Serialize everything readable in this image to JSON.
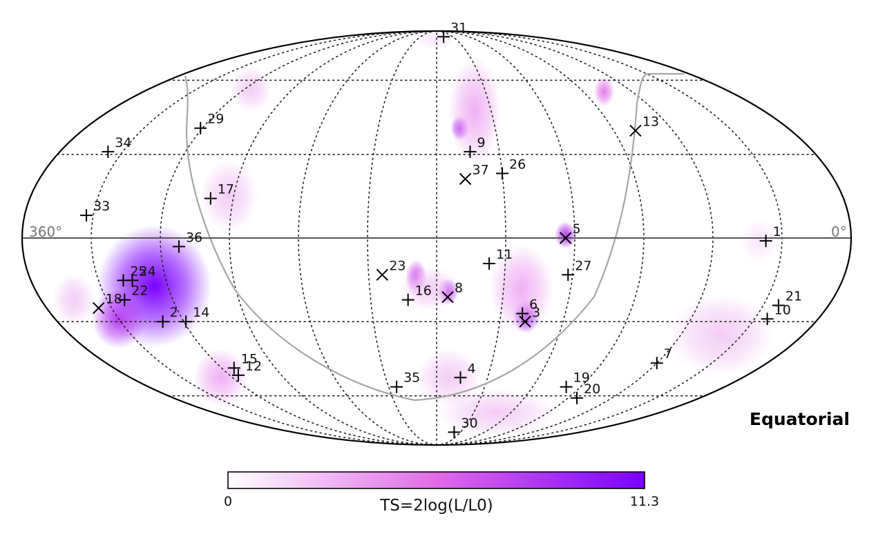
{
  "chart_data": {
    "type": "scatter",
    "projection": "mollweide",
    "frame_label": "Equatorial",
    "x_tick_left": "360°",
    "x_tick_right": "0°",
    "ra_range": [
      0,
      360
    ],
    "dec_range": [
      -90,
      90
    ],
    "grid_ra_step": 30,
    "grid_dec": [
      -60,
      -30,
      0,
      30,
      60
    ],
    "colorbar": {
      "min": 0,
      "max": 11.3,
      "min_label": "0",
      "max_label": "11.3",
      "label": "TS=2log(L/L0)",
      "color_low": "#ffffff",
      "color_high": "#7b00ff"
    },
    "hotspot_colormap_note": "color",
    "ts_map": [
      {
        "ra": 306,
        "dec": -17,
        "ts": 11.3,
        "ra_spread": 16,
        "dec_spread": 14
      },
      {
        "ra": 330,
        "dec": -29,
        "ts": 8.0,
        "ra_spread": 8,
        "dec_spread": 7
      },
      {
        "ra": 307,
        "dec": -52,
        "ts": 3.0,
        "ra_spread": 10,
        "dec_spread": 8
      },
      {
        "ra": 296,
        "dec": 56,
        "ts": 2.0,
        "ra_spread": 8,
        "dec_spread": 6
      },
      {
        "ra": 272,
        "dec": 15,
        "ts": 2.0,
        "ra_spread": 8,
        "dec_spread": 8
      },
      {
        "ra": 77,
        "dec": 55,
        "ts": 5.0,
        "ra_spread": 4,
        "dec_spread": 4
      },
      {
        "ra": 168,
        "dec": 40,
        "ts": 8.0,
        "ra_spread": 3,
        "dec_spread": 3
      },
      {
        "ra": 159,
        "dec": 47,
        "ts": 3.0,
        "ra_spread": 9,
        "dec_spread": 13
      },
      {
        "ra": 124,
        "dec": 1,
        "ts": 8.0,
        "ra_spread": 3,
        "dec_spread": 3
      },
      {
        "ra": 138,
        "dec": -28,
        "ts": 8.5,
        "ra_spread": 4,
        "dec_spread": 4
      },
      {
        "ra": 142,
        "dec": -18,
        "ts": 3.0,
        "ra_spread": 9,
        "dec_spread": 10
      },
      {
        "ra": 175,
        "dec": -19,
        "ts": 8.0,
        "ra_spread": 3,
        "dec_spread": 3
      },
      {
        "ra": 189,
        "dec": -14,
        "ts": 6.5,
        "ra_spread": 3,
        "dec_spread": 4
      },
      {
        "ra": 183,
        "dec": -18,
        "ts": 2.0,
        "ra_spread": 8,
        "dec_spread": 5
      },
      {
        "ra": 173,
        "dec": -52,
        "ts": 2.0,
        "ra_spread": 12,
        "dec_spread": 8
      },
      {
        "ra": 132,
        "dec": -68,
        "ts": 2.0,
        "ra_spread": 30,
        "dec_spread": 8
      },
      {
        "ra": 40,
        "dec": -35,
        "ts": 2.0,
        "ra_spread": 16,
        "dec_spread": 10
      },
      {
        "ra": 345,
        "dec": -22,
        "ts": 2.0,
        "ra_spread": 6,
        "dec_spread": 6
      },
      {
        "ra": 183,
        "dec": 82,
        "ts": 1.0,
        "ra_spread": 20,
        "dec_spread": 4
      },
      {
        "ra": 40,
        "dec": -1,
        "ts": 1.0,
        "ra_spread": 5,
        "dec_spread": 5
      }
    ],
    "markers": [
      {
        "id": "1",
        "ra": 37,
        "dec": -1,
        "symbol": "+"
      },
      {
        "id": "2",
        "ra": 310,
        "dec": -30,
        "symbol": "+"
      },
      {
        "id": "3",
        "ra": 138,
        "dec": -30,
        "symbol": "x"
      },
      {
        "id": "4",
        "ra": 166,
        "dec": -52,
        "symbol": "+"
      },
      {
        "id": "5",
        "ra": 124,
        "dec": 0,
        "symbol": "x"
      },
      {
        "id": "6",
        "ra": 140,
        "dec": -27,
        "symbol": "+"
      },
      {
        "id": "7",
        "ra": 60,
        "dec": -46,
        "symbol": "+"
      },
      {
        "id": "8",
        "ra": 175,
        "dec": -21,
        "symbol": "x"
      },
      {
        "id": "9",
        "ra": 164,
        "dec": 31,
        "symbol": "+"
      },
      {
        "id": "10",
        "ra": 24,
        "dec": -29,
        "symbol": "+"
      },
      {
        "id": "11",
        "ra": 157,
        "dec": -9,
        "symbol": "+"
      },
      {
        "id": "12",
        "ra": 295,
        "dec": -51,
        "symbol": "+"
      },
      {
        "id": "13",
        "ra": 79,
        "dec": 39,
        "symbol": "x"
      },
      {
        "id": "14",
        "ra": 299,
        "dec": -30,
        "symbol": "+"
      },
      {
        "id": "15",
        "ra": 293,
        "dec": -48,
        "symbol": "+"
      },
      {
        "id": "16",
        "ra": 193,
        "dec": -22,
        "symbol": "+"
      },
      {
        "id": "17",
        "ra": 280,
        "dec": 14,
        "symbol": "+"
      },
      {
        "id": "18",
        "ra": 336,
        "dec": -25,
        "symbol": "x"
      },
      {
        "id": "19",
        "ra": 99,
        "dec": -56,
        "symbol": "+"
      },
      {
        "id": "20",
        "ra": 84,
        "dec": -61,
        "symbol": "+"
      },
      {
        "id": "21",
        "ra": 23,
        "dec": -24,
        "symbol": "+"
      },
      {
        "id": "22",
        "ra": 322,
        "dec": -22,
        "symbol": "+"
      },
      {
        "id": "23",
        "ra": 204,
        "dec": -13,
        "symbol": "x"
      },
      {
        "id": "24",
        "ra": 315,
        "dec": -15,
        "symbol": "+"
      },
      {
        "id": "25",
        "ra": 319,
        "dec": -15,
        "symbol": "+"
      },
      {
        "id": "26",
        "ra": 150,
        "dec": 23,
        "symbol": "+"
      },
      {
        "id": "27",
        "ra": 122,
        "dec": -13,
        "symbol": "+"
      },
      {
        "id": "29",
        "ra": 301,
        "dec": 40,
        "symbol": "+"
      },
      {
        "id": "30",
        "ra": 158,
        "dec": -79,
        "symbol": "+"
      },
      {
        "id": "31",
        "ra": 167,
        "dec": 84,
        "symbol": "+"
      },
      {
        "id": "33",
        "ra": 333,
        "dec": 8,
        "symbol": "+"
      },
      {
        "id": "34",
        "ra": 337,
        "dec": 31,
        "symbol": "+"
      },
      {
        "id": "35",
        "ra": 205,
        "dec": -56,
        "symbol": "+"
      },
      {
        "id": "36",
        "ra": 292,
        "dec": -3,
        "symbol": "+"
      },
      {
        "id": "37",
        "ra": 167,
        "dec": 21,
        "symbol": "x"
      }
    ]
  }
}
